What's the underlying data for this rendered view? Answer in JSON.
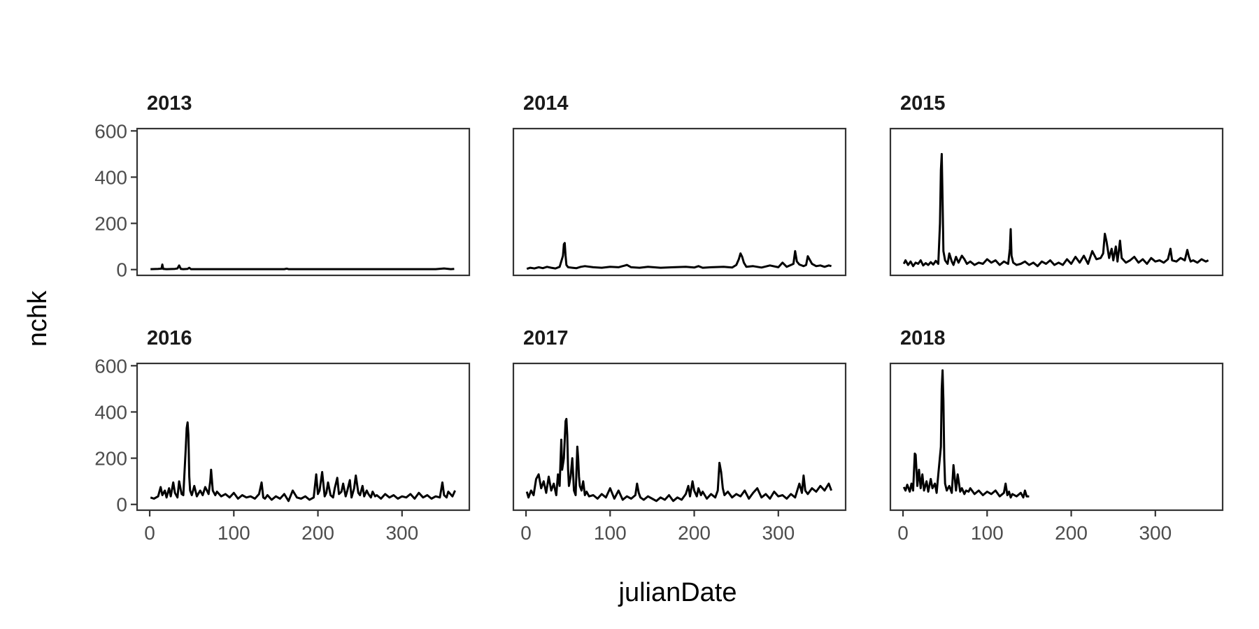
{
  "chart_data": {
    "type": "line",
    "xlabel": "julianDate",
    "ylabel": "nchk",
    "xlim": [
      -15,
      380
    ],
    "ylim": [
      -25,
      610
    ],
    "x_ticks": [
      "0",
      "100",
      "200",
      "300"
    ],
    "y_ticks": [
      "0",
      "200",
      "400",
      "600"
    ],
    "x_tick_values": [
      0,
      100,
      200,
      300
    ],
    "y_tick_values": [
      0,
      200,
      400,
      600
    ],
    "grid": false,
    "line_color": "#000000",
    "panels": [
      {
        "title": "2013",
        "series": [
          {
            "x": [
              1,
              10,
              14,
              15,
              16,
              20,
              30,
              33,
              35,
              37,
              40,
              45,
              47,
              49,
              55,
              70,
              100,
              130,
              160,
              163,
              165,
              190,
              220,
              250,
              280,
              310,
              340,
              350,
              355,
              358,
              362
            ],
            "y": [
              2,
              3,
              4,
              22,
              3,
              2,
              3,
              5,
              18,
              3,
              2,
              3,
              8,
              2,
              2,
              2,
              2,
              2,
              2,
              4,
              2,
              2,
              2,
              2,
              2,
              2,
              2,
              5,
              3,
              2,
              3
            ]
          }
        ]
      },
      {
        "title": "2014",
        "series": [
          {
            "x": [
              1,
              5,
              10,
              15,
              20,
              25,
              30,
              35,
              40,
              44,
              45,
              46,
              47,
              48,
              50,
              55,
              60,
              65,
              70,
              80,
              90,
              100,
              110,
              118,
              120,
              125,
              135,
              145,
              160,
              175,
              190,
              200,
              205,
              210,
              220,
              235,
              245,
              250,
              253,
              255,
              257,
              259,
              262,
              270,
              280,
              290,
              300,
              305,
              310,
              315,
              318,
              320,
              322,
              325,
              330,
              333,
              335,
              340,
              345,
              350,
              355,
              360,
              363
            ],
            "y": [
              3,
              8,
              5,
              10,
              6,
              12,
              8,
              5,
              12,
              60,
              110,
              115,
              60,
              20,
              10,
              8,
              6,
              12,
              15,
              10,
              8,
              12,
              10,
              18,
              20,
              10,
              8,
              12,
              8,
              10,
              12,
              9,
              15,
              8,
              10,
              12,
              9,
              20,
              45,
              70,
              55,
              30,
              12,
              15,
              9,
              18,
              10,
              30,
              12,
              20,
              25,
              80,
              35,
              22,
              15,
              20,
              58,
              25,
              15,
              18,
              12,
              18,
              15
            ]
          }
        ]
      },
      {
        "title": "2015",
        "series": [
          {
            "x": [
              1,
              3,
              6,
              9,
              12,
              15,
              18,
              21,
              24,
              27,
              30,
              33,
              36,
              39,
              42,
              44,
              45,
              46,
              47,
              48,
              50,
              53,
              55,
              58,
              60,
              63,
              66,
              70,
              73,
              76,
              80,
              85,
              90,
              95,
              100,
              105,
              110,
              115,
              120,
              125,
              127,
              128,
              129,
              131,
              135,
              140,
              145,
              150,
              155,
              160,
              165,
              170,
              175,
              180,
              185,
              190,
              195,
              200,
              205,
              210,
              215,
              220,
              225,
              230,
              235,
              238,
              240,
              242,
              245,
              248,
              250,
              253,
              255,
              258,
              260,
              265,
              270,
              275,
              280,
              285,
              290,
              295,
              300,
              305,
              310,
              315,
              318,
              320,
              325,
              330,
              335,
              338,
              340,
              342,
              345,
              350,
              355,
              360,
              363
            ],
            "y": [
              25,
              40,
              20,
              35,
              15,
              30,
              25,
              40,
              18,
              28,
              20,
              32,
              22,
              38,
              25,
              200,
              430,
              500,
              300,
              80,
              40,
              25,
              70,
              35,
              20,
              55,
              30,
              60,
              45,
              25,
              35,
              20,
              30,
              25,
              45,
              30,
              40,
              20,
              35,
              25,
              90,
              175,
              60,
              30,
              20,
              25,
              35,
              20,
              30,
              15,
              35,
              25,
              40,
              20,
              30,
              20,
              45,
              25,
              55,
              30,
              60,
              25,
              80,
              45,
              50,
              70,
              155,
              120,
              50,
              90,
              40,
              100,
              35,
              125,
              50,
              30,
              40,
              55,
              30,
              45,
              25,
              50,
              35,
              40,
              30,
              45,
              90,
              40,
              35,
              50,
              40,
              85,
              55,
              35,
              40,
              30,
              45,
              35,
              40
            ]
          }
        ]
      },
      {
        "title": "2016",
        "series": [
          {
            "x": [
              1,
              5,
              10,
              13,
              15,
              18,
              20,
              23,
              25,
              28,
              30,
              33,
              35,
              38,
              40,
              43,
              44,
              45,
              46,
              47,
              48,
              50,
              53,
              56,
              60,
              63,
              66,
              70,
              72,
              73,
              75,
              78,
              80,
              85,
              90,
              95,
              100,
              105,
              110,
              115,
              120,
              125,
              130,
              133,
              135,
              137,
              140,
              145,
              150,
              155,
              160,
              165,
              170,
              175,
              180,
              185,
              190,
              195,
              198,
              200,
              202,
              205,
              208,
              210,
              212,
              215,
              218,
              220,
              223,
              225,
              228,
              230,
              233,
              235,
              238,
              240,
              243,
              245,
              248,
              250,
              253,
              255,
              258,
              260,
              263,
              265,
              268,
              270,
              275,
              280,
              285,
              290,
              295,
              300,
              305,
              310,
              315,
              320,
              325,
              330,
              335,
              340,
              345,
              348,
              350,
              353,
              355,
              360,
              363
            ],
            "y": [
              30,
              25,
              35,
              75,
              40,
              60,
              30,
              70,
              35,
              95,
              50,
              30,
              100,
              45,
              40,
              250,
              330,
              355,
              300,
              120,
              60,
              40,
              80,
              35,
              60,
              40,
              75,
              45,
              100,
              150,
              60,
              40,
              55,
              35,
              45,
              30,
              50,
              25,
              40,
              30,
              35,
              25,
              45,
              95,
              30,
              25,
              40,
              20,
              35,
              25,
              45,
              15,
              60,
              30,
              25,
              35,
              20,
              30,
              130,
              45,
              60,
              140,
              35,
              50,
              95,
              40,
              30,
              70,
              115,
              45,
              55,
              90,
              35,
              60,
              105,
              30,
              70,
              125,
              50,
              40,
              80,
              35,
              60,
              45,
              30,
              55,
              35,
              40,
              25,
              45,
              30,
              40,
              25,
              35,
              30,
              45,
              25,
              50,
              30,
              40,
              25,
              35,
              30,
              95,
              40,
              30,
              55,
              35,
              60
            ]
          }
        ]
      },
      {
        "title": "2017",
        "series": [
          {
            "x": [
              1,
              3,
              6,
              9,
              12,
              15,
              18,
              21,
              24,
              27,
              30,
              33,
              36,
              38,
              40,
              42,
              43,
              45,
              47,
              48,
              49,
              50,
              51,
              53,
              55,
              57,
              59,
              61,
              62,
              63,
              64,
              66,
              68,
              70,
              72,
              75,
              80,
              85,
              90,
              95,
              100,
              105,
              110,
              115,
              120,
              125,
              130,
              132,
              134,
              136,
              140,
              145,
              150,
              155,
              160,
              165,
              170,
              175,
              180,
              185,
              190,
              193,
              195,
              198,
              200,
              203,
              205,
              208,
              210,
              215,
              220,
              225,
              228,
              230,
              232,
              234,
              236,
              240,
              245,
              250,
              255,
              260,
              265,
              270,
              275,
              280,
              285,
              290,
              295,
              300,
              305,
              310,
              315,
              320,
              325,
              328,
              330,
              332,
              335,
              340,
              345,
              350,
              355,
              360,
              363
            ],
            "y": [
              55,
              30,
              60,
              40,
              110,
              130,
              70,
              100,
              50,
              120,
              60,
              90,
              40,
              130,
              80,
              280,
              150,
              200,
              360,
              370,
              300,
              150,
              80,
              120,
              200,
              60,
              40,
              250,
              200,
              120,
              80,
              60,
              100,
              40,
              55,
              35,
              40,
              25,
              45,
              30,
              70,
              25,
              60,
              20,
              35,
              25,
              40,
              90,
              50,
              30,
              20,
              35,
              25,
              15,
              30,
              20,
              40,
              15,
              30,
              20,
              45,
              80,
              35,
              100,
              60,
              35,
              70,
              40,
              55,
              25,
              45,
              30,
              60,
              180,
              140,
              70,
              40,
              55,
              30,
              45,
              35,
              60,
              25,
              50,
              70,
              30,
              45,
              25,
              55,
              35,
              40,
              25,
              45,
              30,
              90,
              50,
              125,
              60,
              45,
              70,
              55,
              80,
              60,
              90,
              60
            ]
          }
        ]
      },
      {
        "title": "2018",
        "series": [
          {
            "x": [
              1,
              3,
              5,
              8,
              10,
              12,
              14,
              15,
              17,
              19,
              21,
              23,
              25,
              28,
              30,
              33,
              35,
              38,
              40,
              42,
              45,
              46,
              47,
              48,
              49,
              50,
              52,
              55,
              58,
              60,
              63,
              65,
              68,
              70,
              73,
              75,
              78,
              80,
              85,
              90,
              95,
              100,
              105,
              110,
              115,
              120,
              122,
              124,
              126,
              128,
              130,
              135,
              140,
              143,
              145,
              147,
              150
            ],
            "y": [
              75,
              60,
              85,
              55,
              90,
              60,
              220,
              215,
              80,
              150,
              70,
              130,
              60,
              100,
              55,
              110,
              70,
              90,
              50,
              130,
              250,
              500,
              580,
              450,
              200,
              90,
              60,
              80,
              50,
              170,
              60,
              130,
              55,
              70,
              45,
              60,
              55,
              70,
              45,
              60,
              40,
              55,
              45,
              60,
              35,
              50,
              90,
              40,
              55,
              30,
              45,
              35,
              50,
              30,
              60,
              35,
              35
            ]
          }
        ]
      }
    ]
  }
}
